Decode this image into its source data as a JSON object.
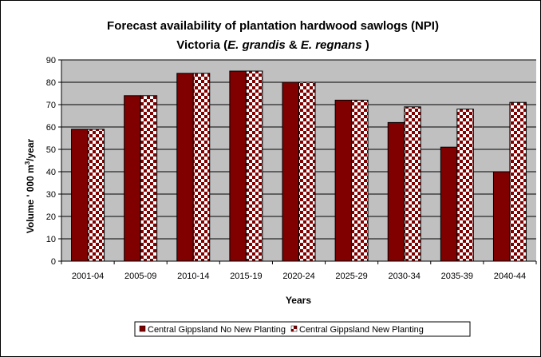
{
  "chart_data": {
    "type": "bar",
    "title_line1": "Forecast availability of plantation hardwood sawlogs (NPI)",
    "title_line2": {
      "prefix": "Victoria (",
      "species1": "E. grandis",
      "amp": " & ",
      "species2": "E. regnans",
      "suffix": " )"
    },
    "xlabel": "Years",
    "ylabel": {
      "main": "Volume ' 000 m",
      "sup": "3",
      "tail": "/year"
    },
    "ylim": [
      0,
      90
    ],
    "yticks": [
      0,
      10,
      20,
      30,
      40,
      50,
      60,
      70,
      80,
      90
    ],
    "grid": true,
    "legend_position": "bottom",
    "categories": [
      "2001-04",
      "2005-09",
      "2010-14",
      "2015-19",
      "2020-24",
      "2025-29",
      "2030-34",
      "2035-39",
      "2040-44"
    ],
    "series": [
      {
        "name": "Central Gippsland No New Planting",
        "values": [
          59,
          74,
          84,
          85,
          80,
          72,
          62,
          51,
          40
        ],
        "color": "#800000",
        "pattern": "solid"
      },
      {
        "name": "Central Gippsland New Planting",
        "values": [
          59,
          74,
          84,
          85,
          80,
          72,
          69,
          68,
          71
        ],
        "color": "#800000",
        "pattern": "checker"
      }
    ],
    "plot_background": "#c0c0c0"
  }
}
